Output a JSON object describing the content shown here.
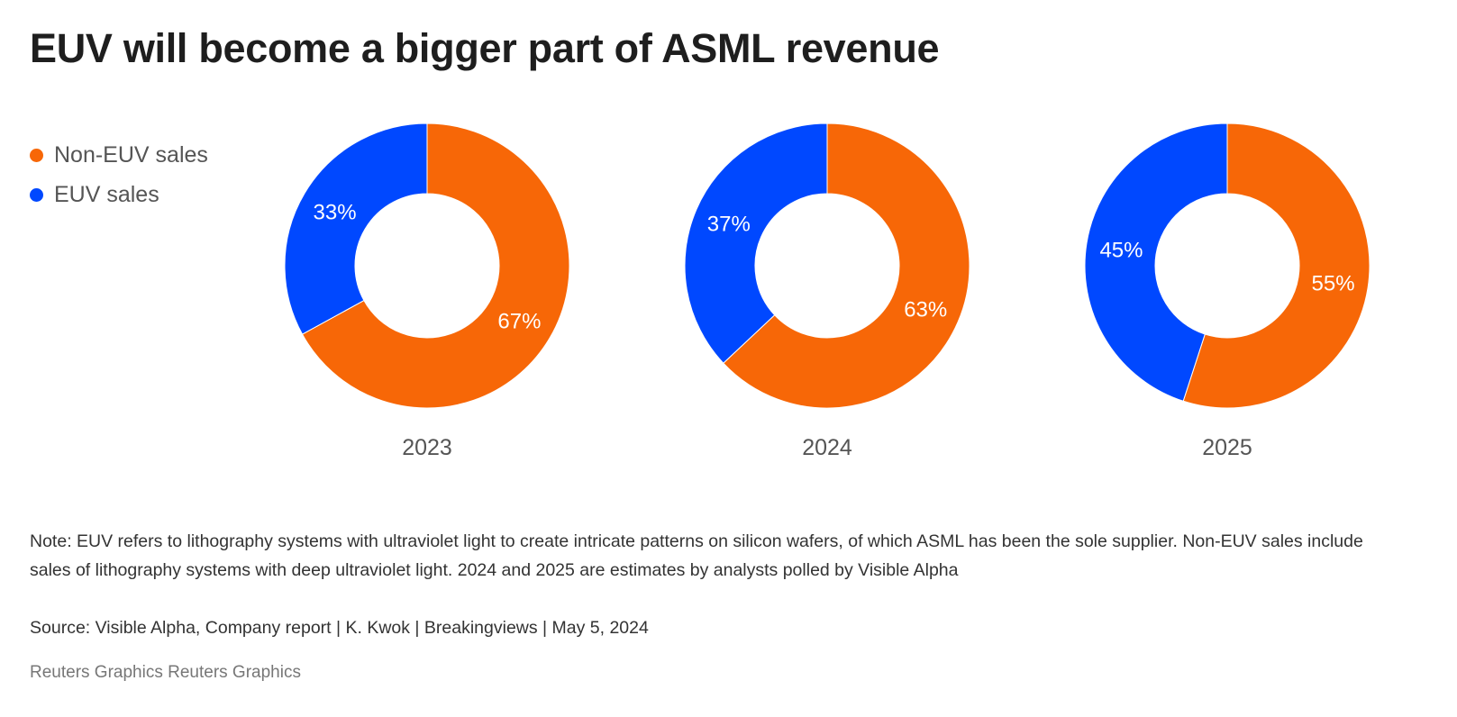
{
  "chart_data": {
    "type": "pie",
    "donut": true,
    "title": "EUV will become a bigger part of ASML revenue",
    "legend_position": "top-left",
    "series_names": [
      "Non-EUV sales",
      "EUV sales"
    ],
    "colors": {
      "Non-EUV sales": "#F76707",
      "EUV sales": "#0048FF"
    },
    "charts": [
      {
        "label": "2023",
        "values": {
          "Non-EUV sales": 67,
          "EUV sales": 33
        },
        "value_labels": {
          "Non-EUV sales": "67%",
          "EUV sales": "33%"
        }
      },
      {
        "label": "2024",
        "values": {
          "Non-EUV sales": 63,
          "EUV sales": 37
        },
        "value_labels": {
          "Non-EUV sales": "63%",
          "EUV sales": "37%"
        }
      },
      {
        "label": "2025",
        "values": {
          "Non-EUV sales": 55,
          "EUV sales": 45
        },
        "value_labels": {
          "Non-EUV sales": "55%",
          "EUV sales": "45%"
        }
      }
    ]
  },
  "legend": {
    "items": [
      {
        "label": "Non-EUV sales",
        "color": "#F76707"
      },
      {
        "label": "EUV sales",
        "color": "#0048FF"
      }
    ]
  },
  "footer": {
    "note": "Note: EUV refers to lithography systems with ultraviolet light to create intricate patterns on silicon wafers, of which ASML has been the sole supplier. Non-EUV sales include sales of lithography systems with deep ultraviolet light. 2024 and 2025 are estimates by analysts polled by Visible Alpha",
    "source": "Source: Visible Alpha, Company report | K. Kwok | Breakingviews | May 5, 2024",
    "credit": "Reuters Graphics Reuters Graphics"
  }
}
